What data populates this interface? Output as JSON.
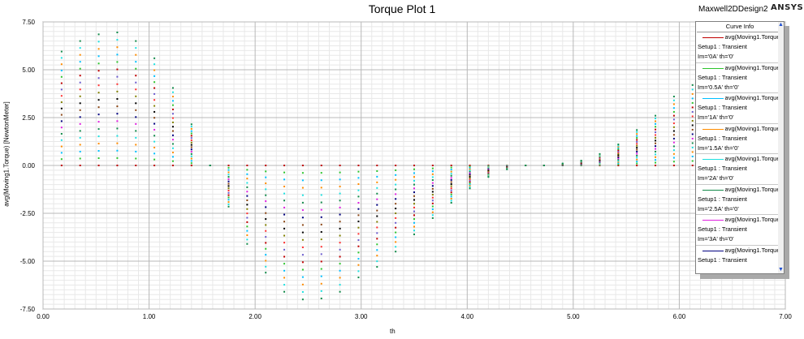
{
  "header": {
    "project": "Maxwell2DDesign2",
    "brand": "ANSYS"
  },
  "chart_data": {
    "type": "scatter",
    "title": "Torque Plot 1",
    "xlabel": "th",
    "ylabel": "avg(Moving1.Torque) [NewtonMeter]",
    "xlim": [
      0.0,
      7.0
    ],
    "ylim": [
      -7.5,
      7.5
    ],
    "x_ticks": [
      "0.00",
      "1.00",
      "2.00",
      "3.00",
      "4.00",
      "5.00",
      "6.00",
      "7.00"
    ],
    "y_ticks": [
      "7.50",
      "5.00",
      "2.50",
      "0.00",
      "-2.50",
      "-5.00",
      "-7.50"
    ],
    "grid": true,
    "legend_position": "top-right",
    "legend_title": "Curve Info",
    "x": [
      0.175,
      0.35,
      0.525,
      0.7,
      0.875,
      1.05,
      1.225,
      1.4,
      1.575,
      1.75,
      1.925,
      2.1,
      2.275,
      2.45,
      2.625,
      2.8,
      2.975,
      3.15,
      3.325,
      3.5,
      3.675,
      3.85,
      4.025,
      4.2,
      4.375,
      4.55,
      4.725,
      4.9,
      5.075,
      5.25,
      5.425,
      5.6,
      5.775,
      5.95,
      6.125
    ],
    "envelope": [
      5.95,
      6.5,
      6.85,
      6.95,
      6.5,
      5.6,
      4.05,
      2.15,
      0.0,
      -2.15,
      -4.1,
      -5.6,
      -6.6,
      -7.0,
      -6.95,
      -6.6,
      -5.85,
      -5.3,
      -4.5,
      -3.6,
      -2.75,
      -1.95,
      -1.2,
      -0.6,
      -0.2,
      0.0,
      0.0,
      0.1,
      0.25,
      0.6,
      1.1,
      1.85,
      2.6,
      3.6,
      4.2
    ],
    "series": [
      {
        "name": "avg(Moving1.Torque)",
        "setup": "Setup1 : Transient",
        "params": "Im='0A' th='0'",
        "color": "#c00000",
        "scale": 0.0
      },
      {
        "name": "avg(Moving1.Torque)",
        "setup": "Setup1 : Transient",
        "params": "Im='0.5A' th='0'",
        "color": "#2ec42e",
        "scale": 0.14
      },
      {
        "name": "avg(Moving1.Torque)",
        "setup": "Setup1 : Transient",
        "params": "Im='1A' th='0'",
        "color": "#00bfff",
        "scale": 0.28
      },
      {
        "name": "avg(Moving1.Torque)",
        "setup": "Setup1 : Transient",
        "params": "Im='1.5A' th='0'",
        "color": "#ff8c00",
        "scale": 0.43
      },
      {
        "name": "avg(Moving1.Torque)",
        "setup": "Setup1 : Transient",
        "params": "Im='2A' th='0'",
        "color": "#1ee0e0",
        "scale": 0.57
      },
      {
        "name": "avg(Moving1.Torque)",
        "setup": "Setup1 : Transient",
        "params": "Im='2.5A' th='0'",
        "color": "#138a4a",
        "scale": 0.71
      },
      {
        "name": "avg(Moving1.Torque)",
        "setup": "Setup1 : Transient",
        "params": "Im='3A' th='0'",
        "color": "#e020e0",
        "scale": 0.86
      },
      {
        "name": "avg(Moving1.Torque)",
        "setup": "Setup1 : Transient",
        "params": "",
        "color": "#000080",
        "scale": 1.0
      }
    ],
    "extra_colors": [
      "#8b4513",
      "#000000",
      "#808000",
      "#ff3030",
      "#6a5acd"
    ]
  }
}
